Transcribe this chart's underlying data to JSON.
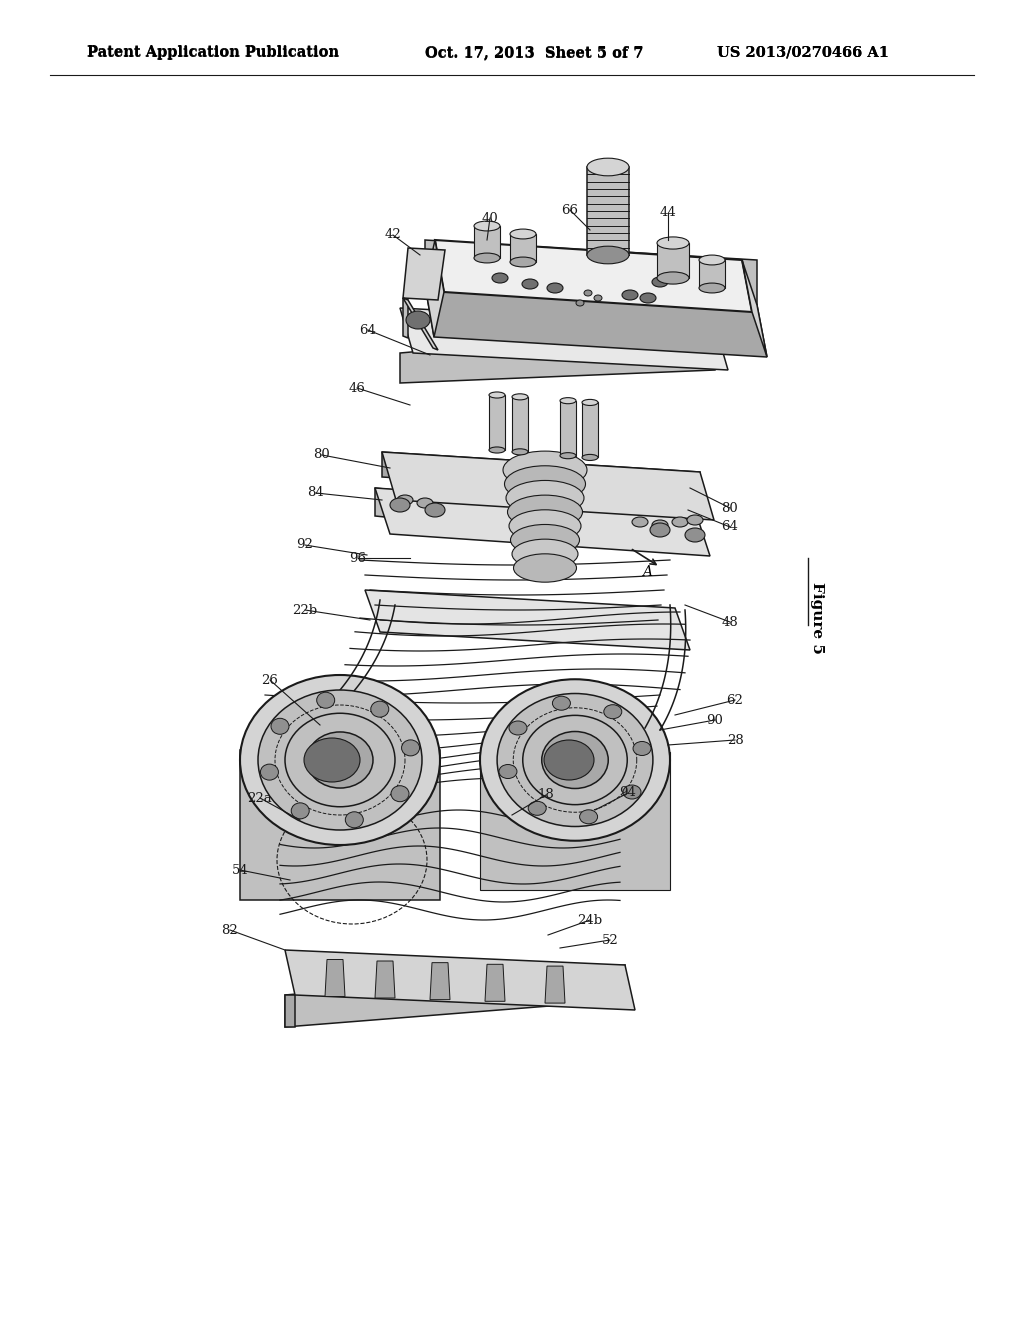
{
  "background_color": "#ffffff",
  "header_left": "Patent Application Publication",
  "header_center": "Oct. 17, 2013  Sheet 5 of 7",
  "header_right": "US 2013/0270466 A1",
  "figure_label": "Figure 5",
  "header_fontsize": 10.5,
  "figure_label_fontsize": 11,
  "label_fontsize": 9.5
}
